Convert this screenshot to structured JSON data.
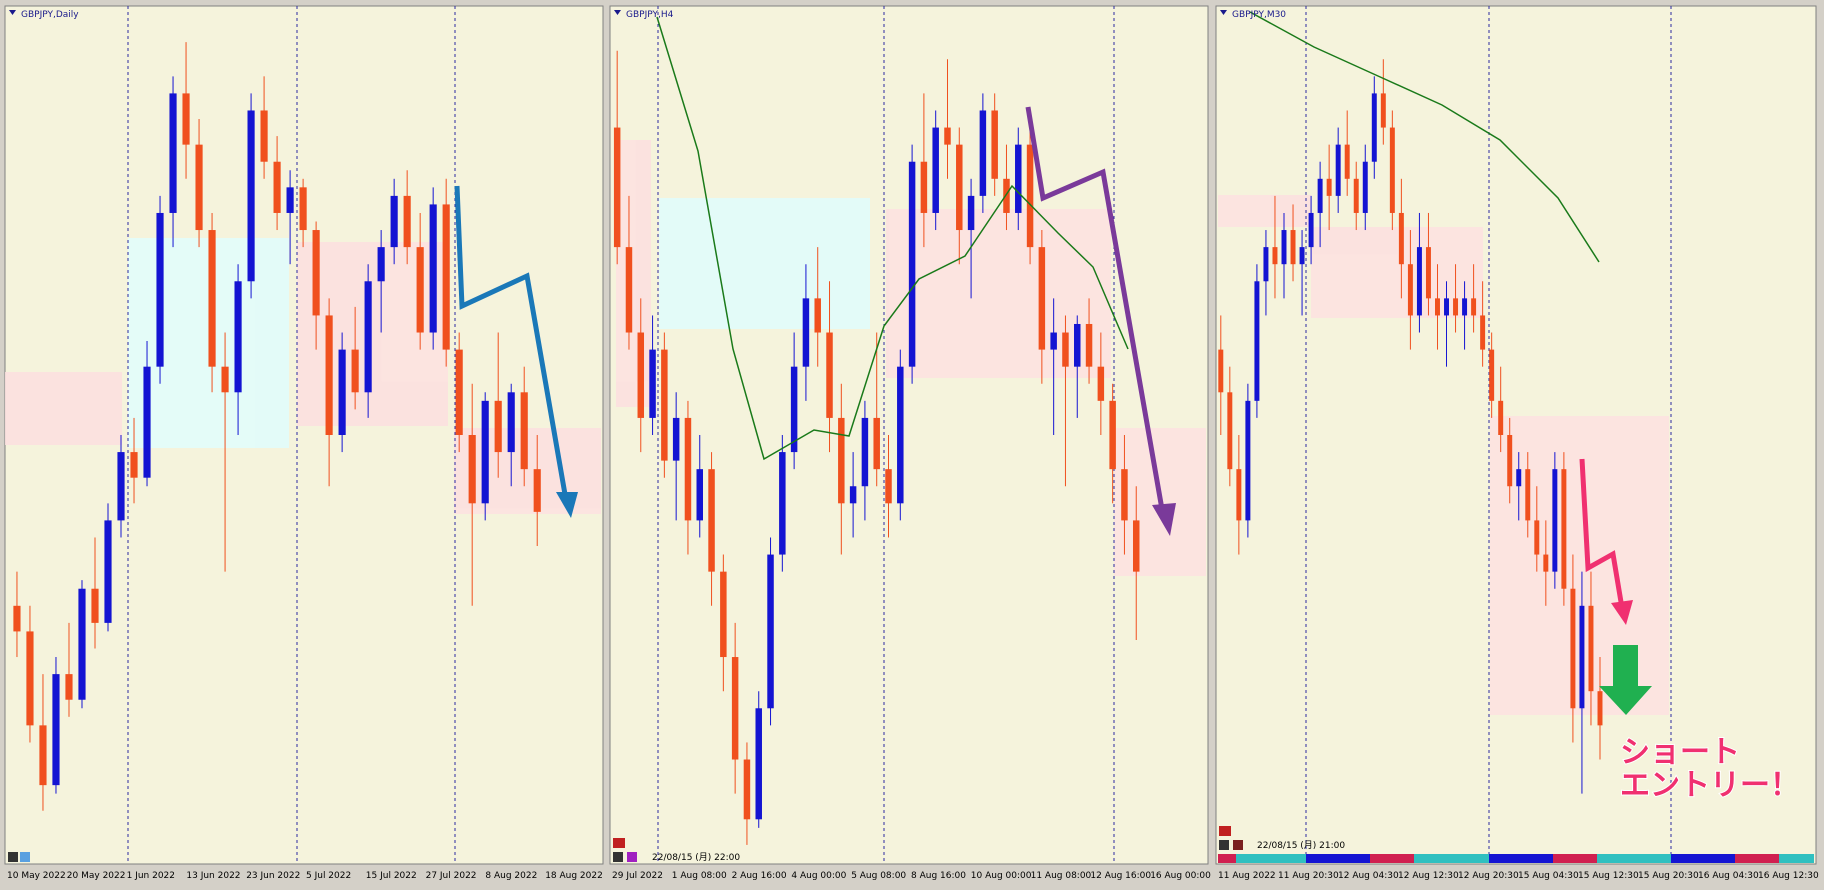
{
  "up_color": "#1414d2",
  "down_color": "#f0501e",
  "panels": [
    {
      "title": "GBPJPY,Daily",
      "ylim": [
        0,
        100
      ],
      "x_labels": [
        "10 May 2022",
        "20 May 2022",
        "1 Jun 2022",
        "13 Jun 2022",
        "23 Jun 2022",
        "5 Jul 2022",
        "15 Jul 2022",
        "27 Jul 2022",
        "8 Aug 2022",
        "18 Aug 2022"
      ],
      "candles": [
        [
          30,
          34,
          24,
          27
        ],
        [
          27,
          30,
          14,
          16
        ],
        [
          16,
          22,
          6,
          9
        ],
        [
          9,
          24,
          8,
          22
        ],
        [
          22,
          28,
          17,
          19
        ],
        [
          19,
          33,
          18,
          32
        ],
        [
          32,
          38,
          25,
          28
        ],
        [
          28,
          42,
          27,
          40
        ],
        [
          40,
          50,
          38,
          48
        ],
        [
          48,
          52,
          42,
          45
        ],
        [
          45,
          61,
          44,
          58
        ],
        [
          58,
          78,
          56,
          76
        ],
        [
          76,
          92,
          72,
          90
        ],
        [
          90,
          96,
          80,
          84
        ],
        [
          84,
          87,
          72,
          74
        ],
        [
          74,
          76,
          55,
          58
        ],
        [
          58,
          62,
          34,
          55
        ],
        [
          55,
          70,
          50,
          68
        ],
        [
          68,
          90,
          66,
          88
        ],
        [
          88,
          92,
          80,
          82
        ],
        [
          82,
          85,
          74,
          76
        ],
        [
          76,
          81,
          70,
          79
        ],
        [
          79,
          80,
          72,
          74
        ],
        [
          74,
          75,
          60,
          64
        ],
        [
          64,
          66,
          44,
          50
        ],
        [
          50,
          62,
          48,
          60
        ],
        [
          60,
          65,
          53,
          55
        ],
        [
          55,
          70,
          52,
          68
        ],
        [
          68,
          74,
          62,
          72
        ],
        [
          72,
          80,
          70,
          78
        ],
        [
          78,
          81,
          70,
          72
        ],
        [
          72,
          76,
          60,
          62
        ],
        [
          62,
          79,
          60,
          77
        ],
        [
          77,
          80,
          58,
          60
        ],
        [
          60,
          62,
          48,
          50
        ],
        [
          50,
          56,
          30,
          42
        ],
        [
          42,
          55,
          40,
          54
        ],
        [
          54,
          62,
          45,
          48
        ],
        [
          48,
          56,
          44,
          55
        ],
        [
          55,
          58,
          44,
          46
        ],
        [
          46,
          50,
          37,
          41
        ]
      ]
    },
    {
      "title": "GBPJPY,H4",
      "ylim": [
        0,
        100
      ],
      "timestamp": "22/08/15 (月) 22:00",
      "x_labels": [
        "29 Jul 2022",
        "1 Aug 08:00",
        "2 Aug 16:00",
        "4 Aug 00:00",
        "5 Aug 08:00",
        "8 Aug 16:00",
        "10 Aug 00:00",
        "11 Aug 08:00",
        "12 Aug 16:00",
        "16 Aug 00:00"
      ],
      "candles": [
        [
          86,
          95,
          70,
          72
        ],
        [
          72,
          78,
          60,
          62
        ],
        [
          62,
          66,
          48,
          52
        ],
        [
          52,
          64,
          50,
          60
        ],
        [
          60,
          62,
          45,
          47
        ],
        [
          47,
          55,
          40,
          52
        ],
        [
          52,
          54,
          36,
          40
        ],
        [
          40,
          50,
          38,
          46
        ],
        [
          46,
          48,
          30,
          34
        ],
        [
          34,
          36,
          20,
          24
        ],
        [
          24,
          28,
          8,
          12
        ],
        [
          12,
          14,
          2,
          5
        ],
        [
          5,
          20,
          4,
          18
        ],
        [
          18,
          38,
          16,
          36
        ],
        [
          36,
          50,
          34,
          48
        ],
        [
          48,
          62,
          46,
          58
        ],
        [
          58,
          70,
          54,
          66
        ],
        [
          66,
          72,
          58,
          62
        ],
        [
          62,
          68,
          48,
          52
        ],
        [
          52,
          56,
          36,
          42
        ],
        [
          42,
          48,
          38,
          44
        ],
        [
          44,
          54,
          40,
          52
        ],
        [
          52,
          62,
          44,
          46
        ],
        [
          46,
          50,
          38,
          42
        ],
        [
          42,
          60,
          40,
          58
        ],
        [
          58,
          84,
          56,
          82
        ],
        [
          82,
          90,
          72,
          76
        ],
        [
          76,
          88,
          74,
          86
        ],
        [
          86,
          94,
          80,
          84
        ],
        [
          84,
          86,
          70,
          74
        ],
        [
          74,
          80,
          66,
          78
        ],
        [
          78,
          90,
          76,
          88
        ],
        [
          88,
          90,
          78,
          80
        ],
        [
          80,
          84,
          74,
          76
        ],
        [
          76,
          86,
          74,
          84
        ],
        [
          84,
          88,
          70,
          72
        ],
        [
          72,
          74,
          56,
          60
        ],
        [
          60,
          66,
          50,
          62
        ],
        [
          62,
          64,
          44,
          58
        ],
        [
          58,
          64,
          52,
          63
        ],
        [
          63,
          66,
          56,
          58
        ],
        [
          58,
          62,
          50,
          54
        ],
        [
          54,
          56,
          42,
          46
        ],
        [
          46,
          50,
          36,
          40
        ],
        [
          40,
          44,
          26,
          34
        ]
      ]
    },
    {
      "title": "GBPJPY,M30",
      "ylim": [
        0,
        100
      ],
      "timestamp": "22/08/15 (月) 21:00",
      "x_labels": [
        "11 Aug 2022",
        "11 Aug 20:30",
        "12 Aug 04:30",
        "12 Aug 12:30",
        "12 Aug 20:30",
        "15 Aug 04:30",
        "15 Aug 12:30",
        "15 Aug 20:30",
        "16 Aug 04:30",
        "16 Aug 12:30"
      ],
      "candles": [
        [
          60,
          64,
          50,
          55
        ],
        [
          55,
          58,
          44,
          46
        ],
        [
          46,
          50,
          36,
          40
        ],
        [
          40,
          56,
          38,
          54
        ],
        [
          54,
          70,
          52,
          68
        ],
        [
          68,
          74,
          64,
          72
        ],
        [
          72,
          78,
          66,
          70
        ],
        [
          70,
          76,
          66,
          74
        ],
        [
          74,
          77,
          68,
          70
        ],
        [
          70,
          74,
          64,
          72
        ],
        [
          72,
          78,
          70,
          76
        ],
        [
          76,
          82,
          72,
          80
        ],
        [
          80,
          84,
          74,
          78
        ],
        [
          78,
          86,
          76,
          84
        ],
        [
          84,
          88,
          78,
          80
        ],
        [
          80,
          82,
          74,
          76
        ],
        [
          76,
          84,
          74,
          82
        ],
        [
          82,
          92,
          80,
          90
        ],
        [
          90,
          94,
          84,
          86
        ],
        [
          86,
          88,
          74,
          76
        ],
        [
          76,
          80,
          66,
          70
        ],
        [
          70,
          74,
          60,
          64
        ],
        [
          64,
          76,
          62,
          72
        ],
        [
          72,
          76,
          64,
          66
        ],
        [
          66,
          70,
          60,
          64
        ],
        [
          64,
          68,
          58,
          66
        ],
        [
          66,
          70,
          62,
          64
        ],
        [
          64,
          68,
          60,
          66
        ],
        [
          66,
          70,
          62,
          64
        ],
        [
          64,
          68,
          58,
          60
        ],
        [
          60,
          62,
          52,
          54
        ],
        [
          54,
          58,
          48,
          50
        ],
        [
          50,
          52,
          42,
          44
        ],
        [
          44,
          48,
          40,
          46
        ],
        [
          46,
          48,
          38,
          40
        ],
        [
          40,
          44,
          34,
          36
        ],
        [
          36,
          40,
          30,
          34
        ],
        [
          34,
          48,
          32,
          46
        ],
        [
          46,
          48,
          30,
          32
        ],
        [
          32,
          36,
          14,
          18
        ],
        [
          18,
          34,
          8,
          30
        ],
        [
          30,
          34,
          16,
          20
        ],
        [
          20,
          24,
          12,
          16
        ]
      ]
    }
  ],
  "annotation": [
    "ショート",
    "エントリー！"
  ]
}
